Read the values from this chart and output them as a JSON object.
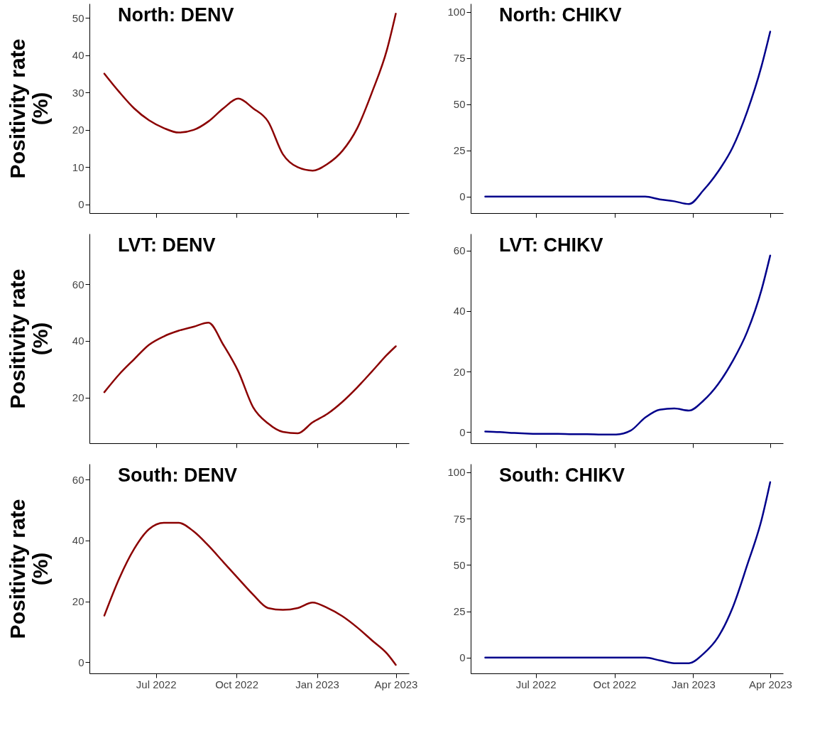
{
  "chart_data": [
    {
      "type": "line",
      "title": "North: DENV",
      "ylabel": "Positivity rate (%)",
      "x": [
        "2022-05-03",
        "2022-05-20",
        "2022-06-06",
        "2022-06-23",
        "2022-07-10",
        "2022-07-27",
        "2022-08-13",
        "2022-08-30",
        "2022-09-16",
        "2022-10-03",
        "2022-10-20",
        "2022-11-06",
        "2022-11-23",
        "2022-12-10",
        "2022-12-27",
        "2023-01-13",
        "2023-01-30",
        "2023-02-16",
        "2023-03-05",
        "2023-03-22",
        "2023-04-01"
      ],
      "series": [
        {
          "color": "#8b0000",
          "values": [
            35.1,
            30.2,
            25.8,
            22.6,
            20.5,
            19.3,
            20,
            22.3,
            25.8,
            28.4,
            25.8,
            22.3,
            13.5,
            10,
            9.1,
            10.9,
            14.4,
            20.5,
            30.2,
            41.6,
            51.2
          ]
        }
      ],
      "xlim": [
        "2022-04-16",
        "2023-04-16"
      ],
      "xticks": [
        {
          "value": "2022-07-01",
          "label": null
        },
        {
          "value": "2022-10-01",
          "label": null
        },
        {
          "value": "2023-01-01",
          "label": null
        },
        {
          "value": "2023-04-01",
          "label": null
        }
      ],
      "ylim": [
        -2.3,
        53.9
      ],
      "yticks": [
        0,
        10,
        20,
        30,
        40,
        50
      ],
      "tick_labels": "y"
    },
    {
      "type": "line",
      "title": "North: CHIKV",
      "x": [
        "2022-05-03",
        "2022-05-20",
        "2022-06-06",
        "2022-06-23",
        "2022-07-10",
        "2022-07-27",
        "2022-08-13",
        "2022-08-30",
        "2022-09-16",
        "2022-10-03",
        "2022-10-20",
        "2022-11-06",
        "2022-11-23",
        "2022-12-10",
        "2022-12-27",
        "2023-01-13",
        "2023-01-30",
        "2023-02-16",
        "2023-03-05",
        "2023-03-22",
        "2023-04-01"
      ],
      "series": [
        {
          "color": "#00008b",
          "values": [
            0,
            0,
            0,
            0,
            0,
            0,
            0,
            0,
            0,
            0,
            0,
            0,
            -1.5,
            -2.5,
            -4,
            3.5,
            13.5,
            26.6,
            46,
            71,
            89.4
          ]
        }
      ],
      "xlim": [
        "2022-04-16",
        "2023-04-16"
      ],
      "xticks": [
        {
          "value": "2022-07-01",
          "label": null
        },
        {
          "value": "2022-10-01",
          "label": null
        },
        {
          "value": "2023-01-01",
          "label": null
        },
        {
          "value": "2023-04-01",
          "label": null
        }
      ],
      "ylim": [
        -8.9,
        104.6
      ],
      "yticks": [
        0,
        25,
        50,
        75,
        100
      ],
      "tick_labels": "y"
    },
    {
      "type": "line",
      "title": "LVT: DENV",
      "ylabel": "Positivity rate (%)",
      "x": [
        "2022-05-03",
        "2022-05-20",
        "2022-06-06",
        "2022-06-23",
        "2022-07-10",
        "2022-07-27",
        "2022-08-13",
        "2022-08-30",
        "2022-09-16",
        "2022-10-03",
        "2022-10-20",
        "2022-11-06",
        "2022-11-23",
        "2022-12-10",
        "2022-12-27",
        "2023-01-13",
        "2023-01-30",
        "2023-02-16",
        "2023-03-05",
        "2023-03-22",
        "2023-04-01"
      ],
      "series": [
        {
          "color": "#8b0000",
          "values": [
            21.9,
            28.2,
            33.5,
            38.6,
            41.6,
            43.6,
            45,
            46.4,
            38.6,
            29.3,
            16.6,
            10.9,
            7.9,
            7.4,
            11.3,
            14.3,
            18.5,
            23.6,
            29.3,
            35.1,
            38.1
          ]
        }
      ],
      "xlim": [
        "2022-04-16",
        "2023-04-16"
      ],
      "xticks": [
        {
          "value": "2022-07-01",
          "label": null
        },
        {
          "value": "2022-10-01",
          "label": null
        },
        {
          "value": "2023-01-01",
          "label": null
        },
        {
          "value": "2023-04-01",
          "label": null
        }
      ],
      "ylim": [
        3.9,
        77.8
      ],
      "yticks": [
        20,
        40,
        60
      ],
      "tick_labels": "y"
    },
    {
      "type": "line",
      "title": "LVT: CHIKV",
      "x": [
        "2022-05-03",
        "2022-05-20",
        "2022-06-06",
        "2022-06-23",
        "2022-07-10",
        "2022-07-27",
        "2022-08-13",
        "2022-08-30",
        "2022-09-16",
        "2022-10-03",
        "2022-10-20",
        "2022-11-06",
        "2022-11-23",
        "2022-12-10",
        "2022-12-27",
        "2023-01-13",
        "2023-01-30",
        "2023-02-16",
        "2023-03-05",
        "2023-03-22",
        "2023-04-01"
      ],
      "series": [
        {
          "color": "#00008b",
          "values": [
            0.2,
            0,
            -0.3,
            -0.5,
            -0.6,
            -0.6,
            -0.7,
            -0.7,
            -0.8,
            -0.8,
            0.5,
            4.8,
            7.4,
            7.8,
            7.1,
            10.4,
            15.8,
            23.4,
            33.1,
            47.2,
            58.4
          ]
        }
      ],
      "xlim": [
        "2022-04-16",
        "2023-04-16"
      ],
      "xticks": [
        {
          "value": "2022-07-01",
          "label": null
        },
        {
          "value": "2022-10-01",
          "label": null
        },
        {
          "value": "2023-01-01",
          "label": null
        },
        {
          "value": "2023-04-01",
          "label": null
        }
      ],
      "ylim": [
        -3.7,
        65.6
      ],
      "yticks": [
        0,
        20,
        40,
        60
      ],
      "tick_labels": "y"
    },
    {
      "type": "line",
      "title": "South: DENV",
      "ylabel": "Positivity rate (%)",
      "x": [
        "2022-05-03",
        "2022-05-20",
        "2022-06-06",
        "2022-06-23",
        "2022-07-10",
        "2022-07-27",
        "2022-08-13",
        "2022-08-30",
        "2022-09-16",
        "2022-10-03",
        "2022-10-20",
        "2022-11-06",
        "2022-11-23",
        "2022-12-10",
        "2022-12-27",
        "2023-01-13",
        "2023-01-30",
        "2023-02-16",
        "2023-03-05",
        "2023-03-22",
        "2023-04-01"
      ],
      "series": [
        {
          "color": "#8b0000",
          "values": [
            15.3,
            27.5,
            37.2,
            43.7,
            45.8,
            45.8,
            43,
            38.3,
            32.9,
            27.5,
            22.2,
            17.8,
            17.2,
            17.8,
            19.6,
            17.8,
            15.1,
            11.4,
            7.1,
            2.8,
            -0.9
          ]
        }
      ],
      "xlim": [
        "2022-04-16",
        "2023-04-16"
      ],
      "xticks": [
        {
          "value": "2022-07-01",
          "label": "Jul 2022"
        },
        {
          "value": "2022-10-01",
          "label": "Oct 2022"
        },
        {
          "value": "2023-01-01",
          "label": "Jan 2023"
        },
        {
          "value": "2023-04-01",
          "label": "Apr 2023"
        }
      ],
      "ylim": [
        -3.7,
        65.2
      ],
      "yticks": [
        0,
        20,
        40,
        60
      ]
    },
    {
      "type": "line",
      "title": "South: CHIKV",
      "x": [
        "2022-05-03",
        "2022-05-20",
        "2022-06-06",
        "2022-06-23",
        "2022-07-10",
        "2022-07-27",
        "2022-08-13",
        "2022-08-30",
        "2022-09-16",
        "2022-10-03",
        "2022-10-20",
        "2022-11-06",
        "2022-11-23",
        "2022-12-10",
        "2022-12-27",
        "2023-01-13",
        "2023-01-30",
        "2023-02-16",
        "2023-03-05",
        "2023-03-22",
        "2023-04-01"
      ],
      "series": [
        {
          "color": "#00008b",
          "values": [
            0,
            0,
            0,
            0,
            0,
            0,
            0,
            0,
            0,
            0,
            0,
            0,
            -1.5,
            -3,
            -3,
            2.1,
            11,
            26.9,
            49.8,
            74.6,
            94.7
          ]
        }
      ],
      "xlim": [
        "2022-04-16",
        "2023-04-16"
      ],
      "xticks": [
        {
          "value": "2022-07-01",
          "label": "Jul 2022"
        },
        {
          "value": "2022-10-01",
          "label": "Oct 2022"
        },
        {
          "value": "2023-01-01",
          "label": "Jan 2023"
        },
        {
          "value": "2023-04-01",
          "label": "Apr 2023"
        }
      ],
      "ylim": [
        -8.5,
        104.6
      ],
      "yticks": [
        0,
        25,
        50,
        75,
        100
      ]
    }
  ]
}
